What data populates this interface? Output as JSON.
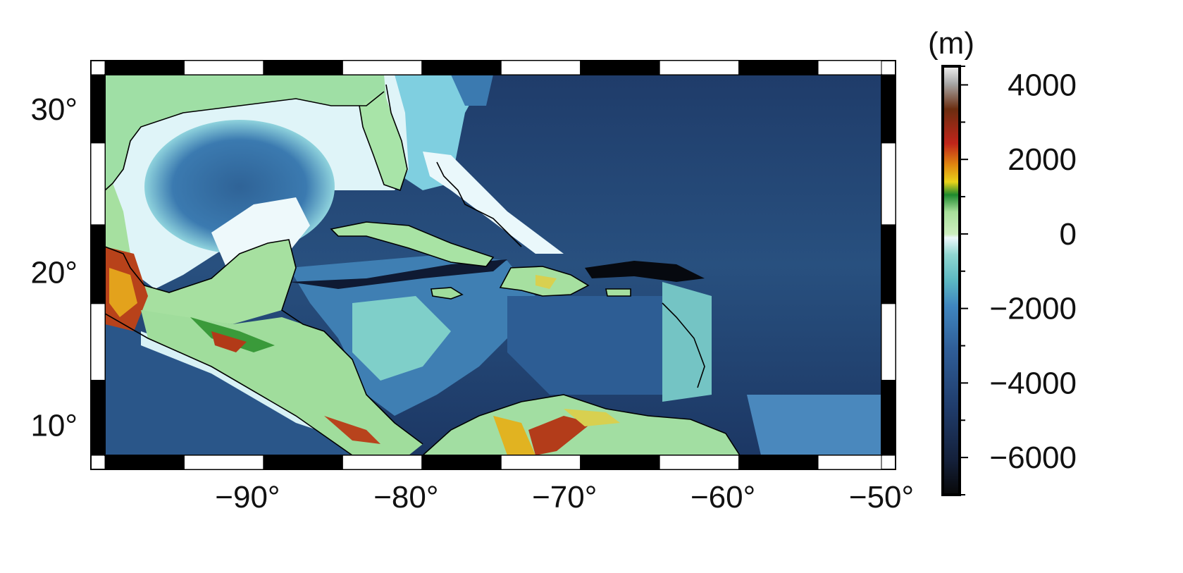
{
  "map": {
    "projection": "Mercator",
    "region": {
      "lon_min": -99,
      "lon_max": -50,
      "lat_min": 8,
      "lat_max": 32
    },
    "frame_style": "fancy black-and-white checkered border",
    "coastlines": "black outline",
    "colormap": "GEBCO-style earth relief (deep navy to light blue ocean, green/yellow/red/brown/grey land)",
    "x_ticks": [
      {
        "value": -90,
        "label": "−90°"
      },
      {
        "value": -80,
        "label": "−80°"
      },
      {
        "value": -70,
        "label": "−70°"
      },
      {
        "value": -60,
        "label": "−60°"
      },
      {
        "value": -50,
        "label": "−50°"
      }
    ],
    "y_ticks": [
      {
        "value": 10,
        "label": "10°"
      },
      {
        "value": 20,
        "label": "20°"
      },
      {
        "value": 30,
        "label": "30°"
      }
    ]
  },
  "colorbar": {
    "unit_label": "(m)",
    "range": [
      -7000,
      4500
    ],
    "ticks": [
      {
        "value": 4000,
        "label": "4000"
      },
      {
        "value": 2000,
        "label": "2000"
      },
      {
        "value": 0,
        "label": "0"
      },
      {
        "value": -2000,
        "label": "−2000"
      },
      {
        "value": -4000,
        "label": "−4000"
      },
      {
        "value": -6000,
        "label": "−6000"
      }
    ],
    "minor_ticks": [
      4500,
      3000,
      1000,
      -1000,
      -3000,
      -5000,
      -7000
    ]
  }
}
